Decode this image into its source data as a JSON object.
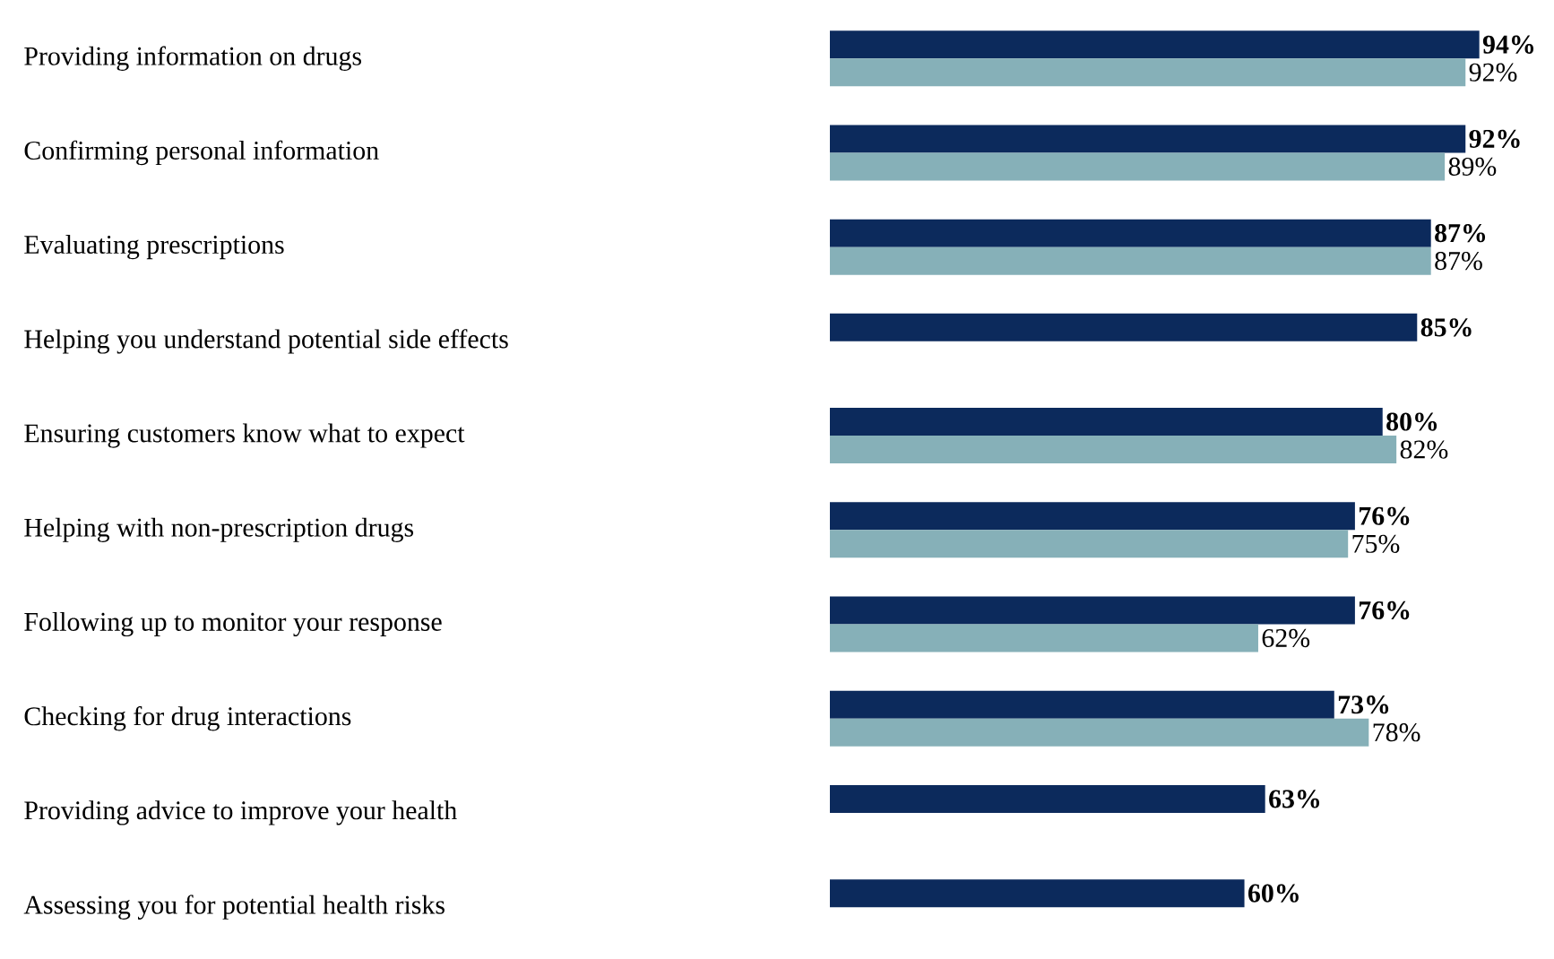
{
  "chart_data": {
    "type": "bar",
    "orientation": "horizontal",
    "categories": [
      "Providing information on drugs",
      "Confirming personal information",
      "Evaluating prescriptions",
      "Helping you understand potential side effects",
      "Ensuring customers know what to expect",
      "Helping with non-prescription drugs",
      "Following up to monitor your response",
      "Checking for drug interactions",
      "Providing advice to improve your health",
      "Assessing you for potential health risks"
    ],
    "series": [
      {
        "color": "#0c2a5c",
        "values": [
          94,
          92,
          87,
          85,
          80,
          76,
          76,
          73,
          63,
          60
        ],
        "value_labels": [
          "94%",
          "92%",
          "87%",
          "85%",
          "80%",
          "76%",
          "76%",
          "73%",
          "63%",
          "60%"
        ]
      },
      {
        "color": "#86b0b8",
        "values": [
          92,
          89,
          87,
          null,
          82,
          75,
          62,
          78,
          null,
          null
        ],
        "value_labels": [
          "92%",
          "89%",
          "87%",
          null,
          "82%",
          "75%",
          "62%",
          "78%",
          null,
          null
        ]
      }
    ],
    "tick_labels": "y"
  }
}
